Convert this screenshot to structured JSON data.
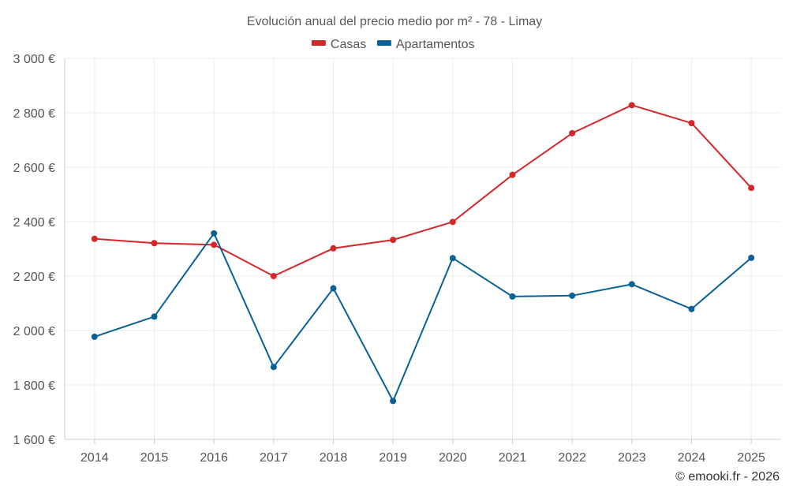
{
  "chart_data": {
    "type": "line",
    "title": "Evolución anual del precio medio por m² - 78 - Limay",
    "categories": [
      "2014",
      "2015",
      "2016",
      "2017",
      "2018",
      "2019",
      "2020",
      "2021",
      "2022",
      "2023",
      "2024",
      "2025"
    ],
    "series": [
      {
        "name": "Casas",
        "color": "#d62728",
        "values": [
          2337,
          2321,
          2315,
          2200,
          2302,
          2333,
          2399,
          2572,
          2725,
          2828,
          2762,
          2524
        ]
      },
      {
        "name": "Apartamentos",
        "color": "#0a6196",
        "values": [
          1977,
          2051,
          2357,
          1866,
          2155,
          1741,
          2266,
          2125,
          2128,
          2170,
          2079,
          2267
        ]
      }
    ],
    "ylim": [
      1600,
      3000
    ],
    "yticks": [
      1600,
      1800,
      2000,
      2200,
      2400,
      2600,
      2800,
      3000
    ],
    "ytick_labels": [
      "1 600 €",
      "1 800 €",
      "2 000 €",
      "2 200 €",
      "2 400 €",
      "2 600 €",
      "2 800 €",
      "3 000 €"
    ],
    "grid": true,
    "legend": "top-center"
  },
  "credit": "© emooki.fr - 2026"
}
